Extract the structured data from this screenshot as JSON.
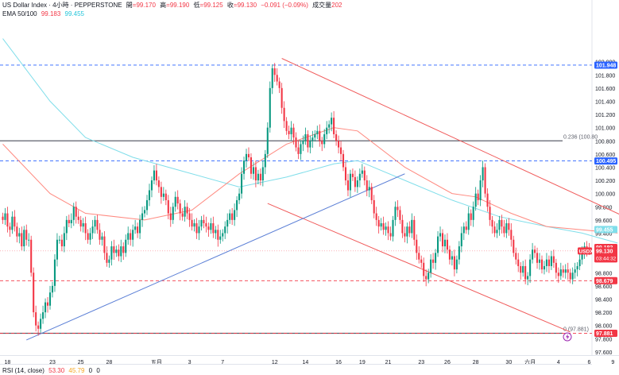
{
  "header": {
    "symbol_line": "US Dollar Index · 4小時 · PEPPERSTONE",
    "open_label": "開",
    "open_value": "=99.170",
    "high_label": "高",
    "high_value": "=99.190",
    "low_label": "低",
    "low_value": "=99.125",
    "close_label": "收",
    "close_value": "=99.130",
    "change": "−0.091 (−0.09%)",
    "volume_label": "成交量",
    "volume_value": "202",
    "ema_label": "EMA 50/100",
    "ema50_value": "99.183",
    "ema100_value": "99.455"
  },
  "rsi": {
    "label": "RSI (14, close)",
    "value1": "53.30",
    "value2": "45.79",
    "value3": "0",
    "value4": "0"
  },
  "colors": {
    "up": "#089981",
    "down": "#f23645",
    "ema50": "#ff8a80",
    "ema100": "#80deea",
    "channel": "#f05a5a",
    "support": "#5b7fd6",
    "hline": "#5d606b"
  },
  "chart_data": {
    "type": "candlestick",
    "y_range": [
      97.55,
      102.55
    ],
    "y_ticks": [
      "102.000",
      "101.800",
      "101.600",
      "101.400",
      "101.200",
      "101.000",
      "100.800",
      "100.600",
      "100.400",
      "100.200",
      "100.000",
      "99.800",
      "99.600",
      "99.400",
      "99.200",
      "99.000",
      "98.800",
      "98.600",
      "98.400",
      "98.200",
      "98.000",
      "97.800",
      "97.600"
    ],
    "x_ticks": [
      {
        "label": "18",
        "i": 2
      },
      {
        "label": "23",
        "i": 21
      },
      {
        "label": "25",
        "i": 33
      },
      {
        "label": "28",
        "i": 45
      },
      {
        "label": "五月",
        "i": 65
      },
      {
        "label": "3",
        "i": 79
      },
      {
        "label": "7",
        "i": 93
      },
      {
        "label": "12",
        "i": 115
      },
      {
        "label": "14",
        "i": 128
      },
      {
        "label": "16",
        "i": 142
      },
      {
        "label": "19",
        "i": 152
      },
      {
        "label": "21",
        "i": 163
      },
      {
        "label": "23",
        "i": 177
      },
      {
        "label": "26",
        "i": 188
      },
      {
        "label": "28",
        "i": 200
      },
      {
        "label": "30",
        "i": 214
      },
      {
        "label": "六月",
        "i": 223
      },
      {
        "label": "4",
        "i": 235
      },
      {
        "label": "6",
        "i": 248
      },
      {
        "label": "9",
        "i": 258
      }
    ],
    "closes": [
      99.6,
      99.7,
      99.5,
      99.45,
      99.65,
      99.5,
      99.35,
      99.4,
      99.2,
      99.45,
      99.3,
      99.3,
      98.8,
      98.2,
      98.0,
      97.95,
      98.1,
      98.2,
      98.35,
      98.3,
      98.5,
      98.6,
      99.0,
      99.3,
      99.3,
      99.2,
      99.4,
      99.6,
      99.55,
      99.6,
      99.8,
      99.65,
      99.6,
      99.5,
      99.55,
      99.4,
      99.3,
      99.4,
      99.5,
      99.6,
      99.45,
      99.3,
      99.35,
      99.1,
      98.95,
      99.0,
      99.2,
      99.1,
      99.15,
      99.05,
      99.2,
      99.1,
      99.3,
      99.4,
      99.3,
      99.45,
      99.5,
      99.4,
      99.6,
      99.7,
      99.75,
      99.9,
      100.05,
      100.2,
      100.35,
      100.2,
      100.1,
      99.95,
      100.0,
      99.9,
      99.7,
      99.6,
      99.8,
      99.95,
      99.85,
      99.7,
      99.65,
      99.8,
      99.7,
      99.6,
      99.5,
      99.55,
      99.4,
      99.5,
      99.6,
      99.55,
      99.5,
      99.45,
      99.55,
      99.4,
      99.45,
      99.3,
      99.35,
      99.4,
      99.5,
      99.6,
      99.7,
      99.6,
      99.75,
      99.9,
      100.0,
      100.3,
      100.5,
      100.6,
      100.55,
      100.3,
      100.4,
      100.2,
      100.3,
      100.2,
      100.4,
      100.6,
      101.0,
      101.6,
      101.9,
      101.8,
      101.7,
      101.6,
      101.3,
      101.1,
      100.95,
      100.9,
      101.0,
      100.85,
      100.7,
      100.6,
      100.75,
      100.8,
      100.9,
      100.7,
      100.8,
      100.85,
      100.9,
      100.95,
      100.8,
      100.75,
      100.9,
      101.0,
      101.05,
      101.15,
      100.9,
      100.8,
      100.7,
      100.6,
      100.4,
      100.2,
      100.05,
      100.3,
      100.25,
      100.1,
      100.2,
      100.3,
      100.35,
      100.2,
      100.05,
      100.1,
      99.9,
      99.7,
      99.6,
      99.5,
      99.55,
      99.45,
      99.5,
      99.4,
      99.35,
      99.6,
      99.8,
      99.75,
      99.6,
      99.4,
      99.35,
      99.5,
      99.4,
      99.6,
      99.3,
      99.1,
      99.0,
      98.95,
      98.75,
      98.7,
      98.8,
      99.0,
      98.95,
      99.1,
      99.35,
      99.4,
      99.2,
      99.3,
      99.15,
      99.0,
      99.05,
      98.85,
      99.0,
      99.2,
      99.4,
      99.5,
      99.45,
      99.7,
      99.6,
      99.8,
      100.0,
      99.9,
      100.2,
      100.4,
      100.0,
      99.8,
      99.6,
      99.5,
      99.4,
      99.45,
      99.6,
      99.5,
      99.4,
      99.55,
      99.45,
      99.3,
      99.1,
      99.0,
      98.9,
      98.8,
      98.9,
      98.7,
      98.75,
      99.0,
      99.15,
      99.1,
      98.95,
      99.0,
      98.85,
      98.9,
      99.0,
      98.9,
      99.05,
      98.95,
      98.8,
      98.75,
      98.85,
      98.8,
      98.85,
      98.8,
      98.7,
      98.8,
      98.85,
      98.9,
      99.0,
      99.1,
      99.2,
      99.15,
      99.13
    ],
    "ema50": [
      [
        0,
        100.75
      ],
      [
        20,
        100.0
      ],
      [
        35,
        99.7
      ],
      [
        60,
        99.6
      ],
      [
        80,
        99.75
      ],
      [
        100,
        100.3
      ],
      [
        120,
        100.75
      ],
      [
        140,
        101.0
      ],
      [
        150,
        100.95
      ],
      [
        170,
        100.4
      ],
      [
        190,
        100.0
      ],
      [
        200,
        99.95
      ],
      [
        215,
        99.7
      ],
      [
        230,
        99.5
      ],
      [
        245,
        99.45
      ],
      [
        260,
        99.4
      ]
    ],
    "ema100": [
      [
        0,
        102.35
      ],
      [
        20,
        101.4
      ],
      [
        35,
        100.85
      ],
      [
        55,
        100.55
      ],
      [
        75,
        100.35
      ],
      [
        100,
        100.1
      ],
      [
        120,
        100.25
      ],
      [
        140,
        100.45
      ],
      [
        150,
        100.5
      ],
      [
        170,
        100.2
      ],
      [
        190,
        99.9
      ],
      [
        210,
        99.65
      ],
      [
        230,
        99.5
      ],
      [
        245,
        99.4
      ],
      [
        260,
        99.25
      ]
    ],
    "lines": [
      {
        "name": "channel-upper",
        "from": [
          118,
          102.05
        ],
        "to": [
          263,
          99.65
        ]
      },
      {
        "name": "channel-lower",
        "from": [
          112,
          99.85
        ],
        "to": [
          240,
          97.9
        ]
      },
      {
        "name": "support-line",
        "from": [
          10,
          97.78
        ],
        "to": [
          170,
          100.3
        ]
      }
    ],
    "levels": [
      {
        "name": "level-101948",
        "value": 101.948,
        "label": "101.948",
        "style": "dashed",
        "color": "#2962ff"
      },
      {
        "name": "level-100495",
        "value": 100.495,
        "label": "100.495",
        "style": "dashed",
        "color": "#2962ff"
      },
      {
        "name": "level-fib-0236",
        "value": 100.8,
        "label": "0.236 (100.80",
        "style": "solid",
        "color": "#5d606b"
      },
      {
        "name": "level-98679",
        "value": 98.679,
        "label": "98.679",
        "style": "dashed",
        "color": "#f23645"
      },
      {
        "name": "level-fib-0",
        "value": 97.881,
        "label": "0 (97.881)",
        "style": "solid",
        "color": "#5d606b"
      },
      {
        "name": "level-97881",
        "value": 97.881,
        "label": "97.881",
        "style": "dashed",
        "color": "#f23645"
      }
    ],
    "price_tags": [
      {
        "name": "tag-101948",
        "value": 101.948,
        "label": "101.948",
        "bg": "#2962ff"
      },
      {
        "name": "tag-100495",
        "value": 100.495,
        "label": "100.495",
        "bg": "#2962ff"
      },
      {
        "name": "tag-99455",
        "value": 99.455,
        "label": "99.455",
        "bg": "#80deea"
      },
      {
        "name": "tag-99183",
        "value": 99.183,
        "label": "99.183",
        "bg": "#f23645"
      },
      {
        "name": "tag-99130",
        "value": 99.13,
        "label": "99.130",
        "bg": "#f23645",
        "sub": "03:44:32"
      },
      {
        "name": "tag-98679",
        "value": 98.679,
        "label": "98.679",
        "bg": "#f23645"
      },
      {
        "name": "tag-97881",
        "value": 97.881,
        "label": "97.881",
        "bg": "#f23645"
      }
    ],
    "symbol_tag": "USDX"
  }
}
